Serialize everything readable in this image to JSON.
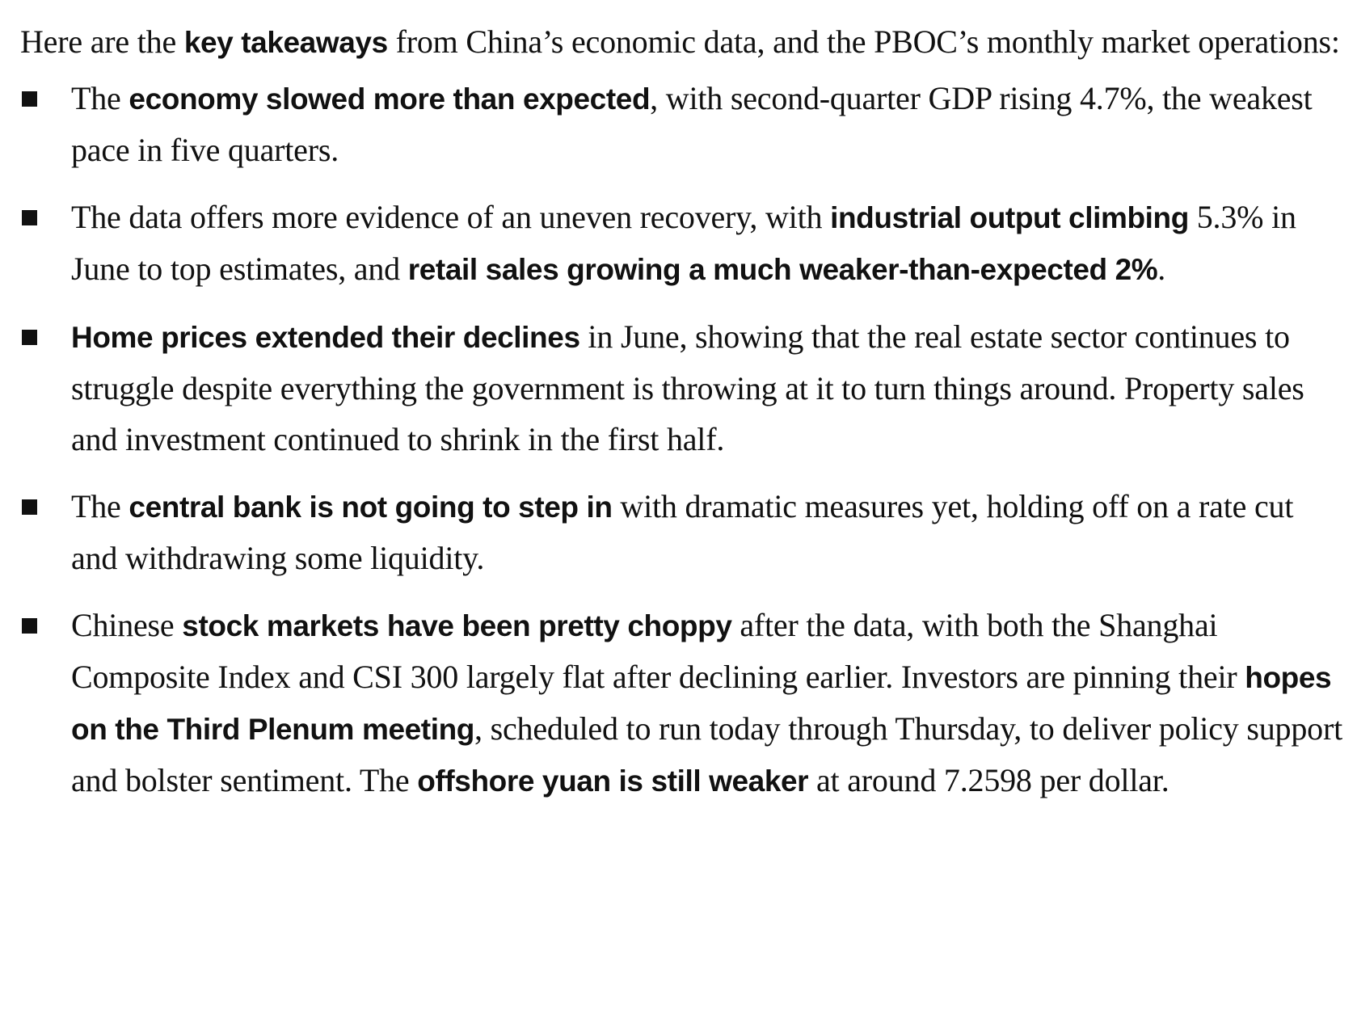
{
  "intro": {
    "text_1": "Here are the ",
    "bold_1": "key takeaways",
    "text_2": " from China’s economic data, and the PBOC’s monthly market operations:"
  },
  "takeaways": [
    {
      "text_1": "The ",
      "bold_1": "economy slowed more than expected",
      "text_2": ", with second-quarter GDP rising 4.7%, the weakest pace in five quarters."
    },
    {
      "text_1": "The data offers more evidence of an uneven recovery, with ",
      "bold_1": "industrial output climbing",
      "text_2": " 5.3% in June to top estimates, and ",
      "bold_2": "retail sales growing a much weaker-than-expected 2%",
      "text_3": "."
    },
    {
      "bold_1": "Home prices extended their declines",
      "text_1": " in June, showing that the real estate sector continues to struggle despite everything the government is throwing at it to turn things around. Property sales and investment continued to shrink in the first half."
    },
    {
      "text_1": "The ",
      "bold_1": "central bank is not going to step in",
      "text_2": " with dramatic measures yet, holding off on a rate cut and withdrawing some liquidity."
    },
    {
      "text_1": "Chinese ",
      "bold_1": "stock markets have been pretty choppy",
      "text_2": " after the data, with both the Shanghai Composite Index and CSI 300 largely flat after declining earlier. Investors are pinning their ",
      "bold_2": "hopes on the Third Plenum meeting",
      "text_3": ", scheduled to run today through Thursday, to deliver policy support and bolster sentiment. The ",
      "bold_3": "offshore yuan is still weaker",
      "text_4": " at around 7.2598 per dollar."
    }
  ]
}
